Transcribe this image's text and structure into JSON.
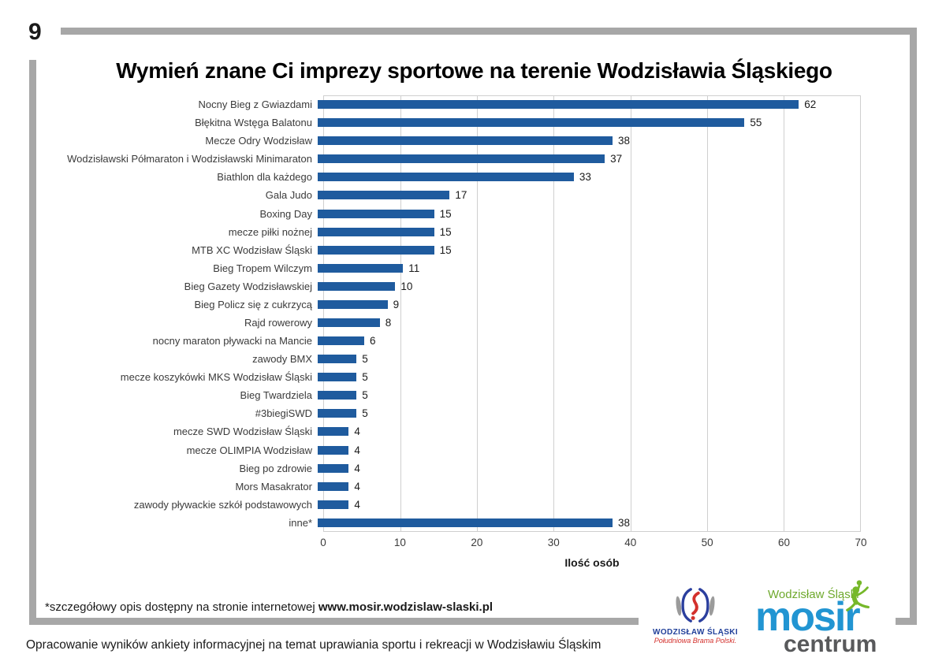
{
  "page": {
    "number": "9"
  },
  "chart_data": {
    "type": "bar",
    "orientation": "horizontal",
    "title": "Wymień znane Ci imprezy sportowe na terenie Wodzisławia Śląskiego",
    "xlabel": "Ilość osób",
    "xlim": [
      0,
      70
    ],
    "xticks": [
      "0",
      "10",
      "20",
      "30",
      "40",
      "50",
      "60",
      "70"
    ],
    "grid": "vertical",
    "bar_color": "#1f5b9e",
    "categories": [
      "Nocny Bieg z Gwiazdami",
      "Błękitna Wstęga Balatonu",
      "Mecze Odry Wodzisław",
      "Wodzisławski Półmaraton i Wodzisławski Minimaraton",
      "Biathlon dla każdego",
      "Gala Judo",
      "Boxing Day",
      "mecze piłki nożnej",
      "MTB XC Wodzisław Śląski",
      "Bieg Tropem Wilczym",
      "Bieg Gazety Wodzisławskiej",
      "Bieg Policz się z cukrzycą",
      "Rajd rowerowy",
      "nocny maraton pływacki na Mancie",
      "zawody BMX",
      "mecze koszykówki MKS Wodzisław Śląski",
      "Bieg Twardziela",
      "#3biegiSWD",
      "mecze SWD Wodzisław Śląski",
      "mecze OLIMPIA Wodzisław",
      "Bieg po zdrowie",
      "Mors Masakrator",
      "zawody pływackie szkół podstawowych",
      "inne*"
    ],
    "values": [
      62,
      55,
      38,
      37,
      33,
      17,
      15,
      15,
      15,
      11,
      10,
      9,
      8,
      6,
      5,
      5,
      5,
      5,
      4,
      4,
      4,
      4,
      4,
      38
    ]
  },
  "footnote": {
    "prefix": "*szczegółowy opis dostępny na stronie internetowej ",
    "url": "www.mosir.wodzislaw-slaski.pl"
  },
  "caption": "Opracowanie wyników ankiety informacyjnej na temat uprawiania sportu i rekreacji w Wodzisławiu Śląskim",
  "logos": {
    "city": {
      "name": "WODZISŁAW ŚLĄSKI",
      "tagline": "Południowa Brama Polski."
    },
    "mosir": {
      "top": "Wodzisław Śląski",
      "main": "mosir",
      "sub": "centrum"
    }
  }
}
